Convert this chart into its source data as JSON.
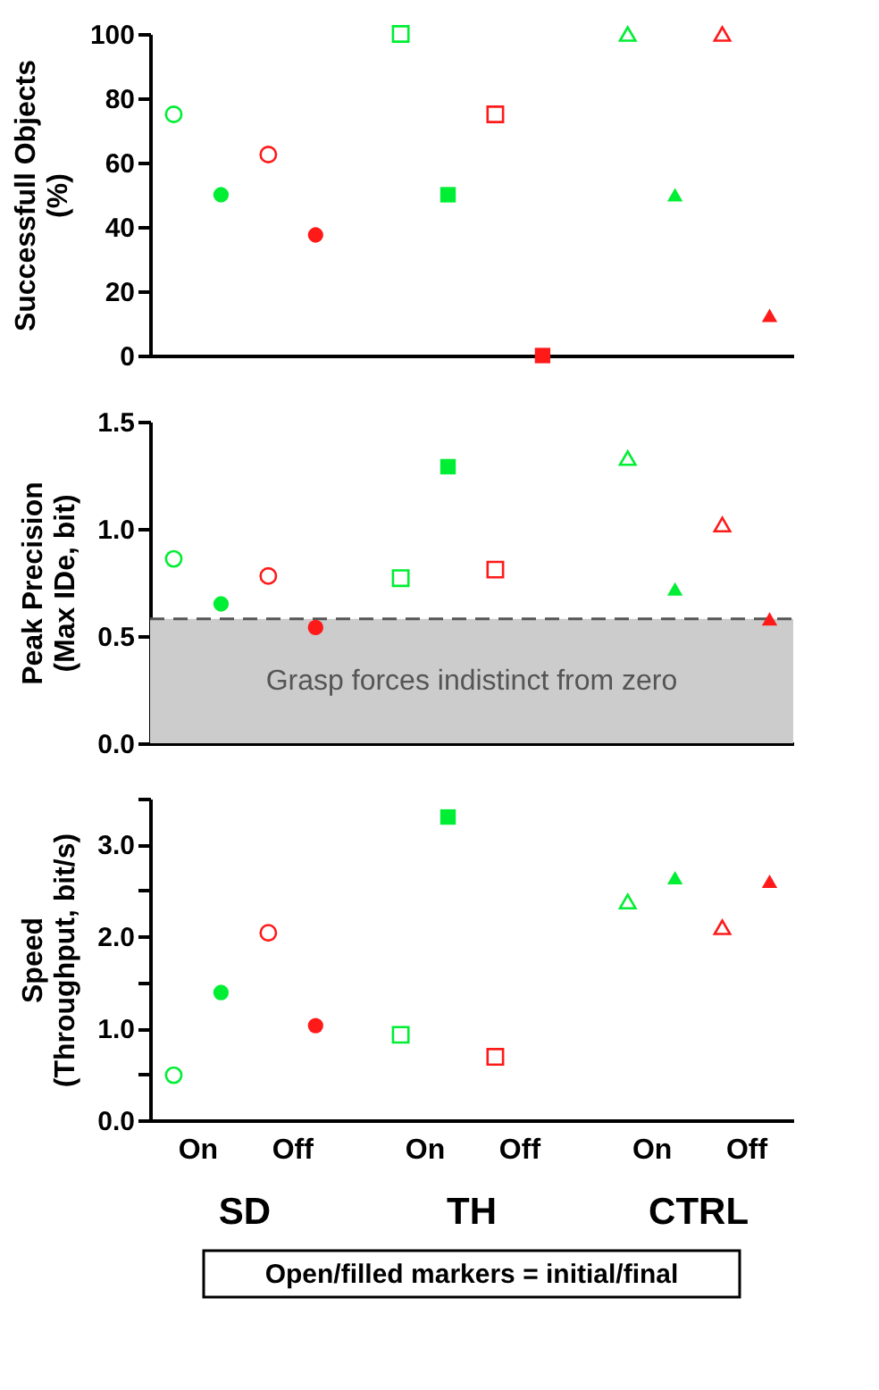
{
  "chart_data": [
    {
      "type": "scatter",
      "ylabel": "Successfull Objects\n(%)",
      "categories": [
        null,
        null,
        null,
        null,
        null,
        null
      ],
      "ylim": [
        0,
        100
      ],
      "yticks": [
        0,
        20,
        40,
        60,
        80,
        100
      ],
      "tick_labels": "y",
      "series": [
        {
          "marker": "circle",
          "values": [
            75,
            62.5,
            null,
            null,
            null,
            null
          ],
          "colors": [
            "#00ee33",
            "#ff1a1a",
            null,
            null,
            null,
            null
          ]
        },
        {
          "marker": "circle",
          "values": [
            50,
            37.5,
            null,
            null,
            null,
            null
          ],
          "colors": [
            "#00ee33",
            "#ff1a1a",
            null,
            null,
            null,
            null
          ]
        },
        {
          "marker": "square",
          "values": [
            null,
            null,
            100,
            75,
            null,
            null
          ],
          "colors": [
            null,
            null,
            "#00ee33",
            "#ff1a1a",
            null,
            null
          ]
        },
        {
          "marker": "square",
          "values": [
            null,
            null,
            50,
            0,
            null,
            null
          ],
          "colors": [
            null,
            null,
            "#00ee33",
            "#ff1a1a",
            null,
            null
          ]
        },
        {
          "marker": "triangle",
          "values": [
            null,
            null,
            null,
            null,
            100,
            100
          ],
          "colors": [
            null,
            null,
            null,
            null,
            "#00ee33",
            "#ff1a1a"
          ]
        },
        {
          "marker": "triangle",
          "values": [
            null,
            null,
            null,
            null,
            50,
            12.5
          ],
          "colors": [
            null,
            null,
            null,
            null,
            "#00ee33",
            "#ff1a1a"
          ]
        }
      ]
    },
    {
      "type": "scatter",
      "ylabel": "Peak Precision\n(Max IDe, bit)",
      "categories": [
        null,
        null,
        null,
        null,
        null,
        null
      ],
      "ylim": [
        0,
        1.5
      ],
      "yticks": [
        {
          "value": 0,
          "label": "0.0"
        },
        {
          "value": 0.5,
          "label": "0.5"
        },
        {
          "value": 1,
          "label": "1.0"
        },
        {
          "value": 1.5,
          "label": "1.5"
        }
      ],
      "tick_labels": "y",
      "bands": [
        {
          "axis": "y",
          "from": 0,
          "to": 0.58,
          "label": "Grasp forces indistinct from zero",
          "color": "#cccccc"
        }
      ],
      "ref_lines": [
        {
          "axis": "y",
          "value": 0.58,
          "color": "#555555",
          "line_style": "dashed"
        }
      ],
      "series": [
        {
          "marker": "circle",
          "values": [
            0.86,
            0.78,
            null,
            null,
            null,
            null
          ],
          "colors": [
            "#00ee33",
            "#ff1a1a",
            null,
            null,
            null,
            null
          ]
        },
        {
          "marker": "circle",
          "values": [
            0.65,
            0.54,
            null,
            null,
            null,
            null
          ],
          "colors": [
            "#00ee33",
            "#ff1a1a",
            null,
            null,
            null,
            null
          ]
        },
        {
          "marker": "square",
          "values": [
            null,
            null,
            0.77,
            0.81,
            null,
            null
          ],
          "colors": [
            null,
            null,
            "#00ee33",
            "#ff1a1a",
            null,
            null
          ]
        },
        {
          "marker": "square",
          "values": [
            null,
            null,
            1.29,
            null,
            null,
            null
          ],
          "colors": [
            null,
            null,
            "#00ee33",
            null,
            null,
            null
          ]
        },
        {
          "marker": "triangle",
          "values": [
            null,
            null,
            null,
            null,
            1.33,
            1.02
          ],
          "colors": [
            null,
            null,
            null,
            null,
            "#00ee33",
            "#ff1a1a"
          ]
        },
        {
          "marker": "triangle",
          "values": [
            null,
            null,
            null,
            null,
            0.72,
            0.58
          ],
          "colors": [
            null,
            null,
            null,
            null,
            "#00ee33",
            "#ff1a1a"
          ]
        }
      ]
    },
    {
      "type": "scatter",
      "ylabel": "Speed\n(Throughput, bit/s)",
      "categories": [
        "On",
        "Off",
        "On",
        "Off",
        "On",
        "Off"
      ],
      "ylim": [
        0,
        3.5
      ],
      "yticks": [
        {
          "value": 0,
          "label": "0.0"
        },
        {
          "value": 0.5,
          "label": null
        },
        {
          "value": 1,
          "label": "1.0"
        },
        {
          "value": 1.5,
          "label": null
        },
        {
          "value": 2,
          "label": "2.0"
        },
        {
          "value": 2.5,
          "label": null
        },
        {
          "value": 3,
          "label": "3.0"
        },
        {
          "value": 3.5,
          "label": null
        }
      ],
      "annotations": [
        "SD",
        "TH",
        "CTRL",
        "Open/filled markers = initial/final"
      ],
      "series": [
        {
          "marker": "circle",
          "values": [
            0.49,
            2.04,
            null,
            null,
            null,
            null
          ],
          "colors": [
            "#00ee33",
            "#ff1a1a",
            null,
            null,
            null,
            null
          ]
        },
        {
          "marker": "circle",
          "values": [
            1.39,
            1.03,
            null,
            null,
            null,
            null
          ],
          "colors": [
            "#00ee33",
            "#ff1a1a",
            null,
            null,
            null,
            null
          ]
        },
        {
          "marker": "square",
          "values": [
            null,
            null,
            0.93,
            0.69,
            null,
            null
          ],
          "colors": [
            null,
            null,
            "#00ee33",
            "#ff1a1a",
            null,
            null
          ]
        },
        {
          "marker": "square",
          "values": [
            null,
            null,
            3.3,
            null,
            null,
            null
          ],
          "colors": [
            null,
            null,
            "#00ee33",
            null,
            null,
            null
          ]
        },
        {
          "marker": "triangle",
          "values": [
            null,
            null,
            null,
            null,
            2.38,
            2.1
          ],
          "colors": [
            null,
            null,
            null,
            null,
            "#00ee33",
            "#ff1a1a"
          ]
        },
        {
          "marker": "triangle",
          "values": [
            null,
            null,
            null,
            null,
            2.64,
            2.6
          ],
          "colors": [
            null,
            null,
            null,
            null,
            "#00ee33",
            "#ff1a1a"
          ]
        }
      ]
    }
  ]
}
